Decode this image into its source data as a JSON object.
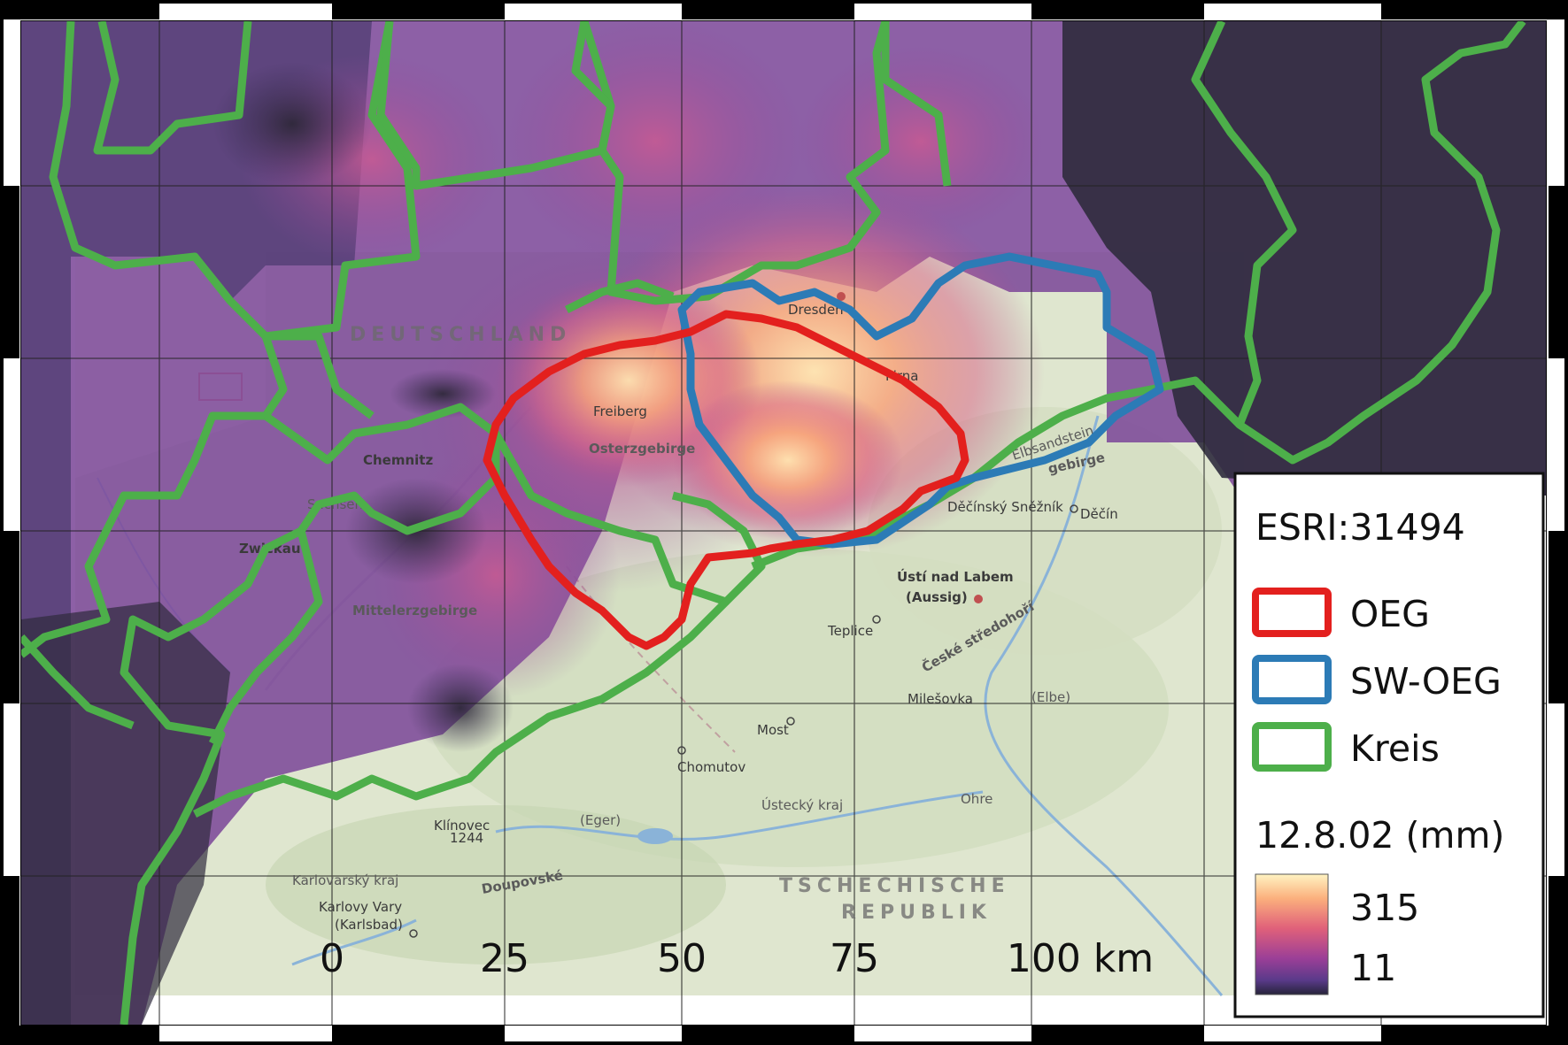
{
  "map": {
    "crs": "ESRI:31494",
    "colors": {
      "oeg": "#e3201e",
      "sw_oeg": "#2c7bb6",
      "kreis": "#4daf4a",
      "colormap_low": "#23232f",
      "colormap_high": "#fff3c2"
    }
  },
  "legend": {
    "crs_label": "ESRI:31494",
    "items": [
      {
        "label": "OEG",
        "color": "#e3201e"
      },
      {
        "label": "SW-OEG",
        "color": "#2c7bb6"
      },
      {
        "label": "Kreis",
        "color": "#4daf4a"
      }
    ],
    "colorbar_title": "12.8.02 (mm)",
    "colorbar_max": "315",
    "colorbar_min": "11"
  },
  "scalebar": {
    "ticks": [
      "0",
      "25",
      "50",
      "75",
      "100 km"
    ]
  },
  "basemap_labels": {
    "deutschland": "DEUTSCHLAND",
    "dresden": "Dresden",
    "freiberg": "Freiberg",
    "osterzgebirge": "Osterzgebirge",
    "chemnitz": "Chemnitz",
    "zwickau": "Zwickau",
    "mittelerzgebirge": "Mittelerzgebirge",
    "pirna": "Pirna",
    "elbsandstein": "Elbsandstein",
    "gebirge": "gebirge",
    "decin": "Děčín",
    "snieznik": "Děčínský Sněžník",
    "usti": "Ústí nad Labem",
    "aussig": "(Aussig)",
    "teplice": "Teplice",
    "ceske": "České středohoří",
    "most": "Most",
    "chomutov": "Chomutov",
    "ustecky": "Ústecký kraj",
    "ohre": "Ohre",
    "eger": "(Eger)",
    "elbe": "(Elbe)",
    "klinovec": "Klínovec",
    "klinovec_h": "1244",
    "karlovarsky": "Karlovarský kraj",
    "doupovske": "Doupovské",
    "karlovy": "Karlovy Vary",
    "karlsbad": "(Karlsbad)",
    "tschechische": "TSCHECHISCHE",
    "republik": "REPUBLIK",
    "milesovka": "Milešovka",
    "sachsen": "Sachsen"
  }
}
